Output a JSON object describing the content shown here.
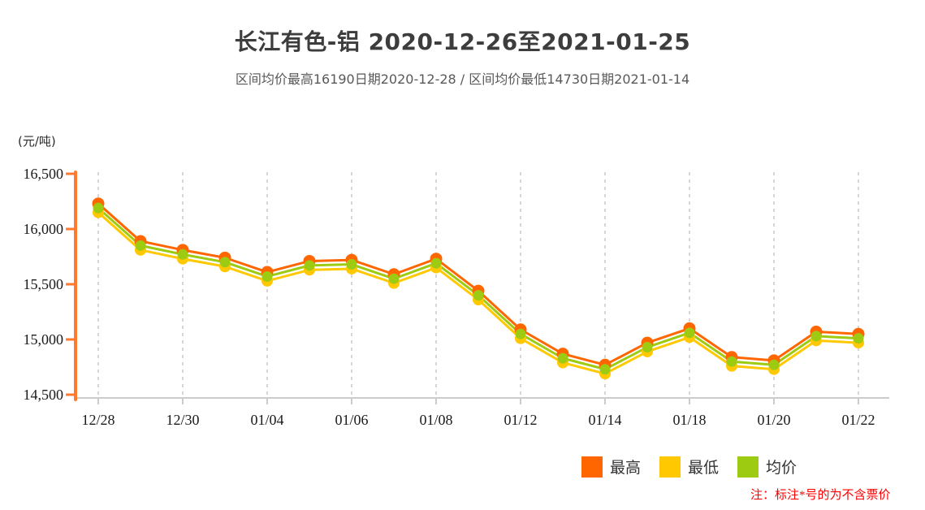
{
  "page": {
    "title": "长江有色-铝 2020-12-26至2021-01-25",
    "subtitle": "区间均价最高16190日期2020-12-28 / 区间均价最低14730日期2021-01-14",
    "unit_label": "(元/吨)",
    "note": "注：标注*号的为不含票价"
  },
  "colors": {
    "high_series": "#ff6600",
    "low_series": "#ffc800",
    "avg_series": "#9ccb11",
    "y_axis": "#ff7a2e",
    "x_axis": "#cccccc",
    "gridline": "#d6d6d6",
    "tick_text": "#1a1a1a",
    "title_text": "#3d3d3d",
    "subtitle_text": "#595959",
    "note_text": "#ff0000"
  },
  "legend": [
    {
      "label": "最高"
    },
    {
      "label": "最低"
    },
    {
      "label": "均价"
    }
  ],
  "chart_data": {
    "type": "line",
    "title": "长江有色-铝 2020-12-26至2021-01-25",
    "subtitle": "区间均价最高16190日期2020-12-28 / 区间均价最低14730日期2021-01-14",
    "xlabel": "",
    "ylabel": "(元/吨)",
    "categories": [
      "12/28",
      "12/29",
      "12/30",
      "12/31",
      "01/04",
      "01/05",
      "01/06",
      "01/07",
      "01/08",
      "01/11",
      "01/12",
      "01/13",
      "01/14",
      "01/15",
      "01/18",
      "01/19",
      "01/20",
      "01/21",
      "01/22"
    ],
    "x_tick_shown_every": 2,
    "series": [
      {
        "name": "最高",
        "color": "#ff6600",
        "values": [
          16230,
          15890,
          15810,
          15740,
          15610,
          15710,
          15720,
          15590,
          15730,
          15440,
          15090,
          14870,
          14770,
          14970,
          15100,
          14840,
          14810,
          15070,
          15050
        ]
      },
      {
        "name": "最低",
        "color": "#ffc800",
        "values": [
          16150,
          15810,
          15730,
          15660,
          15530,
          15630,
          15640,
          15510,
          15650,
          15360,
          15010,
          14790,
          14690,
          14890,
          15020,
          14760,
          14730,
          14990,
          14970
        ]
      },
      {
        "name": "均价",
        "color": "#9ccb11",
        "values": [
          16190,
          15850,
          15770,
          15700,
          15570,
          15670,
          15680,
          15550,
          15690,
          15400,
          15050,
          14830,
          14730,
          14930,
          15060,
          14800,
          14770,
          15030,
          15010
        ]
      }
    ],
    "ylim": [
      14500,
      16500
    ],
    "y_ticks": [
      16500,
      16000,
      15500,
      15000,
      14500
    ],
    "y_tick_labels": [
      "16,500",
      "16,000",
      "15,500",
      "15,000",
      "14,500"
    ],
    "grid": "vertical-dashed",
    "legend_position": "bottom-right",
    "annotations": [
      "区间均价最高16190日期2020-12-28",
      "区间均价最低14730日期2021-01-14"
    ]
  }
}
